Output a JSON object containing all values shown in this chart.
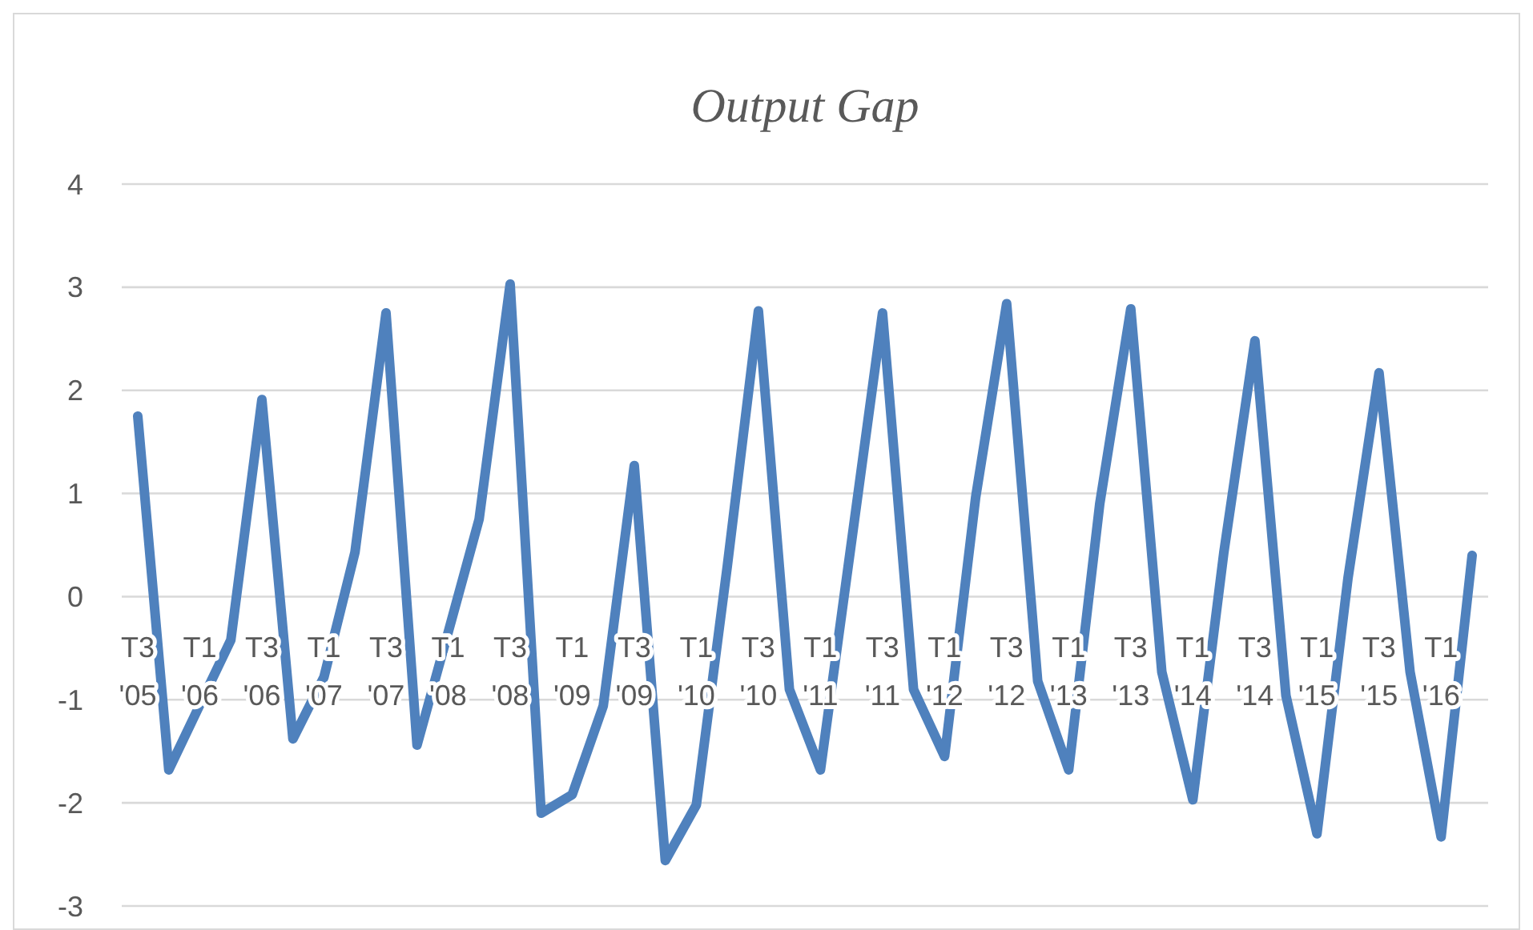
{
  "chart_data": {
    "type": "line",
    "title": "Output Gap",
    "categories": [
      "T3 '05",
      null,
      "T1 '06",
      null,
      "T3 '06",
      null,
      "T1 '07",
      null,
      "T3 '07",
      null,
      "T1 '08",
      null,
      "T3 '08",
      null,
      "T1 '09",
      null,
      "T3 '09",
      null,
      "T1 '10",
      null,
      "T3 '10",
      null,
      "T1 '11",
      null,
      "T3 '11",
      null,
      "T1 '12",
      null,
      "T3 '12",
      null,
      "T1 '13",
      null,
      "T3 '13",
      null,
      "T1 '14",
      null,
      "T3 '14",
      null,
      "T1 '15",
      null,
      "T3 '15",
      null,
      "T1 '16",
      null
    ],
    "series": [
      {
        "color": "#4f81bd",
        "values": [
          1.75,
          -1.68,
          -1.05,
          -0.42,
          1.91,
          -1.38,
          -0.78,
          0.43,
          2.75,
          -1.44,
          -0.35,
          0.75,
          3.03,
          -2.1,
          -1.92,
          -1.06,
          1.27,
          -2.56,
          -2.02,
          0.3,
          2.77,
          -0.9,
          -1.68,
          0.53,
          2.75,
          -0.9,
          -1.55,
          0.96,
          2.84,
          -0.82,
          -1.68,
          0.9,
          2.79,
          -0.73,
          -1.97,
          0.43,
          2.48,
          -0.96,
          -2.3,
          0.18,
          2.17,
          -0.73,
          -2.33,
          0.4
        ]
      }
    ],
    "ylim": [
      -3,
      4
    ],
    "yticks": [
      -3,
      -2,
      -1,
      0,
      1,
      2,
      3,
      4
    ],
    "grid": "y",
    "marker": "none",
    "line_style": "solid"
  }
}
